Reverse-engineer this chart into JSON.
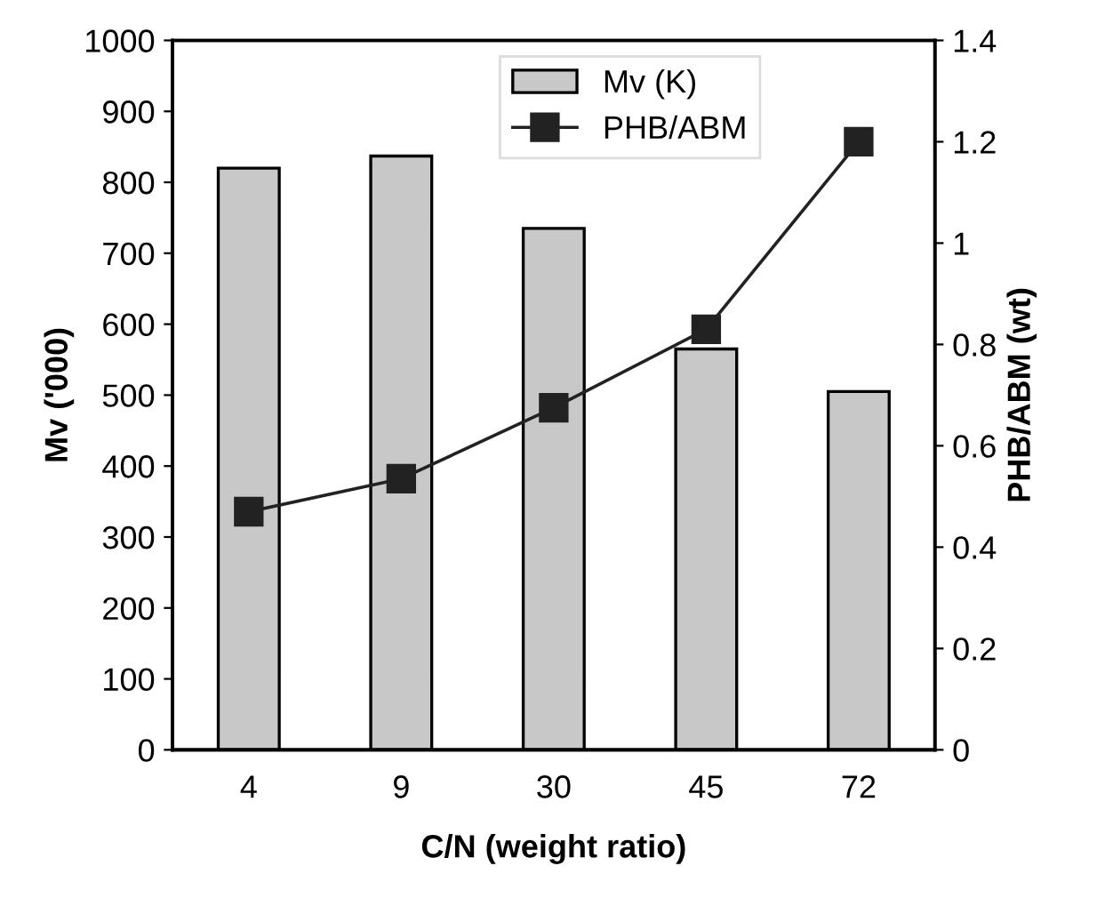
{
  "chart_data": {
    "type": "bar",
    "xlabel": "C/N (weight ratio)",
    "ylabel": "Mv ('000)",
    "y2label": "PHB/ABM (wt)",
    "categories": [
      "4",
      "9",
      "30",
      "45",
      "72"
    ],
    "series": [
      {
        "name": "Mv (K)",
        "color": "#c8c8c8",
        "values": [
          820,
          837,
          735,
          565,
          505
        ]
      },
      {
        "name": "PHB/ABM",
        "type": "line",
        "axis": "y2",
        "color": "#222222",
        "marker": "square",
        "values": [
          0.47,
          0.535,
          0.675,
          0.83,
          1.2
        ]
      }
    ],
    "ylim": [
      0,
      1000
    ],
    "yticks": [
      0,
      100,
      200,
      300,
      400,
      500,
      600,
      700,
      800,
      900,
      1000
    ],
    "y2lim": [
      0,
      1.4
    ],
    "y2ticks": [
      0,
      0.2,
      0.4,
      0.6,
      0.8,
      1,
      1.2,
      1.4
    ],
    "legend": "top",
    "grid": false
  }
}
